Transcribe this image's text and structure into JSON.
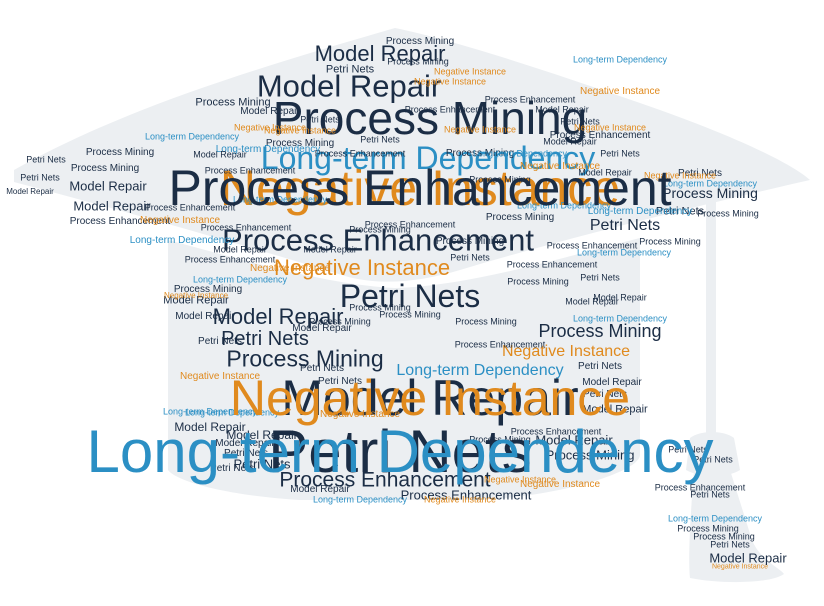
{
  "palette": {
    "background": "#ffffff",
    "silhouette": "#eceff2",
    "navy": "#1b2d45",
    "orange": "#e08a1e",
    "blue": "#2b8fc4",
    "dark": "#23344d"
  },
  "shape": "graduation-cap",
  "terms": [
    "Negative Instance",
    "Model Repair",
    "Petri Nets",
    "Process Mining",
    "Process Enhancement",
    "Long-term Dependency"
  ],
  "words": [
    {
      "t": "Negative Instance",
      "c": "orange"
    },
    {
      "t": "Model Repair",
      "c": "navy"
    },
    {
      "t": "Petri Nets",
      "c": "navy"
    },
    {
      "t": "Process Mining",
      "c": "navy"
    },
    {
      "t": "Long-term Dependency",
      "c": "blue"
    },
    {
      "t": "Process Enhancement",
      "c": "navy"
    },
    {
      "t": "Model Repair",
      "c": "navy"
    },
    {
      "t": "Negative Instance",
      "c": "orange"
    },
    {
      "t": "Petri Nets",
      "c": "navy"
    },
    {
      "t": "Process Enhancement",
      "c": "navy"
    },
    {
      "t": "Model Repair",
      "c": "navy"
    },
    {
      "t": "Process Mining",
      "c": "navy"
    },
    {
      "t": "Petri Nets",
      "c": "navy"
    },
    {
      "t": "Process Mining",
      "c": "navy"
    },
    {
      "t": "Process Mining",
      "c": "navy"
    },
    {
      "t": "Negative Instance",
      "c": "orange"
    },
    {
      "t": "Long-term Dependency",
      "c": "blue"
    },
    {
      "t": "Petri Nets",
      "c": "navy"
    },
    {
      "t": "Petri Nets",
      "c": "navy"
    },
    {
      "t": "Model Repair",
      "c": "navy"
    },
    {
      "t": "Petri Nets",
      "c": "navy"
    },
    {
      "t": "Petri Nets",
      "c": "navy"
    },
    {
      "t": "Process Mining",
      "c": "navy"
    },
    {
      "t": "Process Enhancement",
      "c": "navy"
    },
    {
      "t": "Model Repair",
      "c": "navy"
    },
    {
      "t": "Model Repair",
      "c": "navy"
    },
    {
      "t": "Model Repair",
      "c": "navy"
    },
    {
      "t": "Model Repair",
      "c": "navy"
    },
    {
      "t": "Petri Nets",
      "c": "navy"
    },
    {
      "t": "Process Mining",
      "c": "navy"
    },
    {
      "t": "Model Repair",
      "c": "navy"
    },
    {
      "t": "Model Repair",
      "c": "navy"
    },
    {
      "t": "Model Repair",
      "c": "navy"
    },
    {
      "t": "Petri Nets",
      "c": "navy"
    },
    {
      "t": "Petri Nets",
      "c": "navy"
    },
    {
      "t": "Petri Nets",
      "c": "navy"
    },
    {
      "t": "Petri Nets",
      "c": "navy"
    },
    {
      "t": "Model Repair",
      "c": "navy"
    },
    {
      "t": "Model Repair",
      "c": "navy"
    },
    {
      "t": "Model Repair",
      "c": "navy"
    },
    {
      "t": "Model Repair",
      "c": "navy"
    },
    {
      "t": "Petri Nets",
      "c": "navy"
    },
    {
      "t": "Petri Nets",
      "c": "navy"
    },
    {
      "t": "Process Mining",
      "c": "navy"
    },
    {
      "t": "Process Mining",
      "c": "navy"
    },
    {
      "t": "Process Mining",
      "c": "navy"
    },
    {
      "t": "Process Mining",
      "c": "navy"
    },
    {
      "t": "Process Mining",
      "c": "navy"
    },
    {
      "t": "Process Mining",
      "c": "navy"
    },
    {
      "t": "Process Mining",
      "c": "navy"
    },
    {
      "t": "Process Mining",
      "c": "navy"
    },
    {
      "t": "Process Mining",
      "c": "navy"
    },
    {
      "t": "Process Mining",
      "c": "navy"
    },
    {
      "t": "Process Enhancement",
      "c": "navy"
    },
    {
      "t": "Process Enhancement",
      "c": "navy"
    },
    {
      "t": "Process Enhancement",
      "c": "navy"
    },
    {
      "t": "Process Enhancement",
      "c": "navy"
    },
    {
      "t": "Process Enhancement",
      "c": "navy"
    },
    {
      "t": "Process Enhancement",
      "c": "navy"
    },
    {
      "t": "Process Enhancement",
      "c": "navy"
    },
    {
      "t": "Process Enhancement",
      "c": "navy"
    },
    {
      "t": "Negative Instance",
      "c": "orange"
    },
    {
      "t": "Negative Instance",
      "c": "orange"
    },
    {
      "t": "Negative Instance",
      "c": "orange"
    },
    {
      "t": "Negative Instance",
      "c": "orange"
    },
    {
      "t": "Negative Instance",
      "c": "orange"
    },
    {
      "t": "Negative Instance",
      "c": "orange"
    },
    {
      "t": "Negative Instance",
      "c": "orange"
    },
    {
      "t": "Negative Instance",
      "c": "orange"
    },
    {
      "t": "Negative Instance",
      "c": "orange"
    },
    {
      "t": "Negative Instance",
      "c": "orange"
    },
    {
      "t": "Negative Instance",
      "c": "orange"
    },
    {
      "t": "Negative Instance",
      "c": "orange"
    },
    {
      "t": "Negative Instance",
      "c": "orange"
    },
    {
      "t": "Long-term Dependency",
      "c": "blue"
    },
    {
      "t": "Long-term Dependency",
      "c": "blue"
    },
    {
      "t": "Long-term Dependency",
      "c": "blue"
    },
    {
      "t": "Long-term Dependency",
      "c": "blue"
    },
    {
      "t": "Long-term Dependency",
      "c": "blue"
    },
    {
      "t": "Long-term Dependency",
      "c": "blue"
    },
    {
      "t": "Long-term Dependency",
      "c": "blue"
    },
    {
      "t": "Long-term Dependency",
      "c": "blue"
    },
    {
      "t": "Long-term Dependency",
      "c": "blue"
    },
    {
      "t": "Long-term Dependency",
      "c": "blue"
    },
    {
      "t": "Long-term Dependency",
      "c": "blue"
    },
    {
      "t": "Model Repair",
      "c": "navy"
    },
    {
      "t": "Petri Nets",
      "c": "navy"
    },
    {
      "t": "Model Repair",
      "c": "navy"
    },
    {
      "t": "Process Mining",
      "c": "navy"
    },
    {
      "t": "Process Mining",
      "c": "navy"
    },
    {
      "t": "Process Mining",
      "c": "navy"
    },
    {
      "t": "Petri Nets",
      "c": "navy"
    },
    {
      "t": "Petri Nets",
      "c": "navy"
    },
    {
      "t": "Model Repair",
      "c": "navy"
    },
    {
      "t": "Model Repair",
      "c": "navy"
    },
    {
      "t": "Petri Nets",
      "c": "navy"
    },
    {
      "t": "Model Repair",
      "c": "navy"
    },
    {
      "t": "Petri Nets",
      "c": "navy"
    },
    {
      "t": "Model Repair",
      "c": "navy"
    },
    {
      "t": "Petri Nets",
      "c": "navy"
    },
    {
      "t": "Process Mining",
      "c": "navy"
    },
    {
      "t": "Process Mining",
      "c": "navy"
    },
    {
      "t": "Process Mining",
      "c": "navy"
    },
    {
      "t": "Petri Nets",
      "c": "navy"
    },
    {
      "t": "Process Enhancement",
      "c": "navy"
    },
    {
      "t": "Process Enhancement",
      "c": "navy"
    },
    {
      "t": "Long-term Dependency",
      "c": "blue"
    },
    {
      "t": "Negative Instance",
      "c": "orange"
    },
    {
      "t": "Process Enhancement",
      "c": "navy"
    },
    {
      "t": "Model Repair",
      "c": "navy"
    },
    {
      "t": "Petri Nets",
      "c": "navy"
    },
    {
      "t": "Process Mining",
      "c": "navy"
    },
    {
      "t": "Model Repair",
      "c": "navy"
    },
    {
      "t": "Petri Nets",
      "c": "navy"
    },
    {
      "t": "Process Enhancement",
      "c": "navy"
    },
    {
      "t": "Negative Instance",
      "c": "orange"
    },
    {
      "t": "Long-term Dependency",
      "c": "blue"
    },
    {
      "t": "Process Mining",
      "c": "navy"
    },
    {
      "t": "Model Repair",
      "c": "navy"
    },
    {
      "t": "Petri Nets",
      "c": "navy"
    },
    {
      "t": "Process Enhancement",
      "c": "navy"
    },
    {
      "t": "Negative Instance",
      "c": "orange"
    },
    {
      "t": "Long-term Dependency",
      "c": "blue"
    },
    {
      "t": "Model Repair",
      "c": "navy"
    },
    {
      "t": "Petri Nets",
      "c": "navy"
    },
    {
      "t": "Process Mining",
      "c": "navy"
    },
    {
      "t": "Process Enhancement",
      "c": "navy"
    },
    {
      "t": "Negative Instance",
      "c": "orange"
    },
    {
      "t": "Long-term Dependency",
      "c": "blue"
    },
    {
      "t": "Model Repair",
      "c": "navy"
    },
    {
      "t": "Petri Nets",
      "c": "navy"
    },
    {
      "t": "Process Mining",
      "c": "navy"
    },
    {
      "t": "Process Enhancement",
      "c": "navy"
    },
    {
      "t": "Negative Instance",
      "c": "orange"
    },
    {
      "t": "Long-term Dependency",
      "c": "blue"
    },
    {
      "t": "Model Repair",
      "c": "navy"
    },
    {
      "t": "Petri Nets",
      "c": "navy"
    },
    {
      "t": "Process Mining",
      "c": "navy"
    },
    {
      "t": "Process Enhancement",
      "c": "navy"
    },
    {
      "t": "Negative Instance",
      "c": "orange"
    },
    {
      "t": "Long-term Dependency",
      "c": "blue"
    }
  ]
}
